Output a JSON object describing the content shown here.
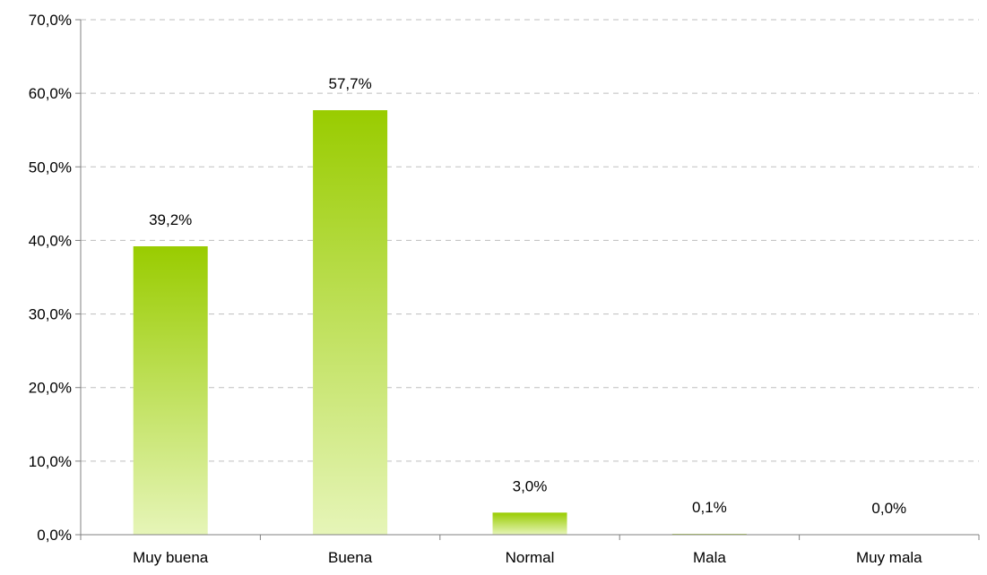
{
  "chart_data": {
    "type": "bar",
    "title": "",
    "xlabel": "",
    "ylabel": "",
    "categories": [
      "Muy buena",
      "Buena",
      "Normal",
      "Mala",
      "Muy mala"
    ],
    "values": [
      39.2,
      57.7,
      3.0,
      0.1,
      0.0
    ],
    "value_labels": [
      "39,2%",
      "57,7%",
      "3,0%",
      "0,1%",
      "0,0%"
    ],
    "ylim": [
      0,
      70
    ],
    "yticks": [
      0,
      10,
      20,
      30,
      40,
      50,
      60,
      70
    ],
    "ytick_labels": [
      "0,0%",
      "10,0%",
      "20,0%",
      "30,0%",
      "40,0%",
      "50,0%",
      "60,0%",
      "70,0%"
    ],
    "grid": true,
    "legend": "none",
    "colors": {
      "bar_top": "#99cc00",
      "bar_bottom": "#e6f5b8",
      "grid": "#bfbfbf",
      "axis": "#808080"
    }
  }
}
